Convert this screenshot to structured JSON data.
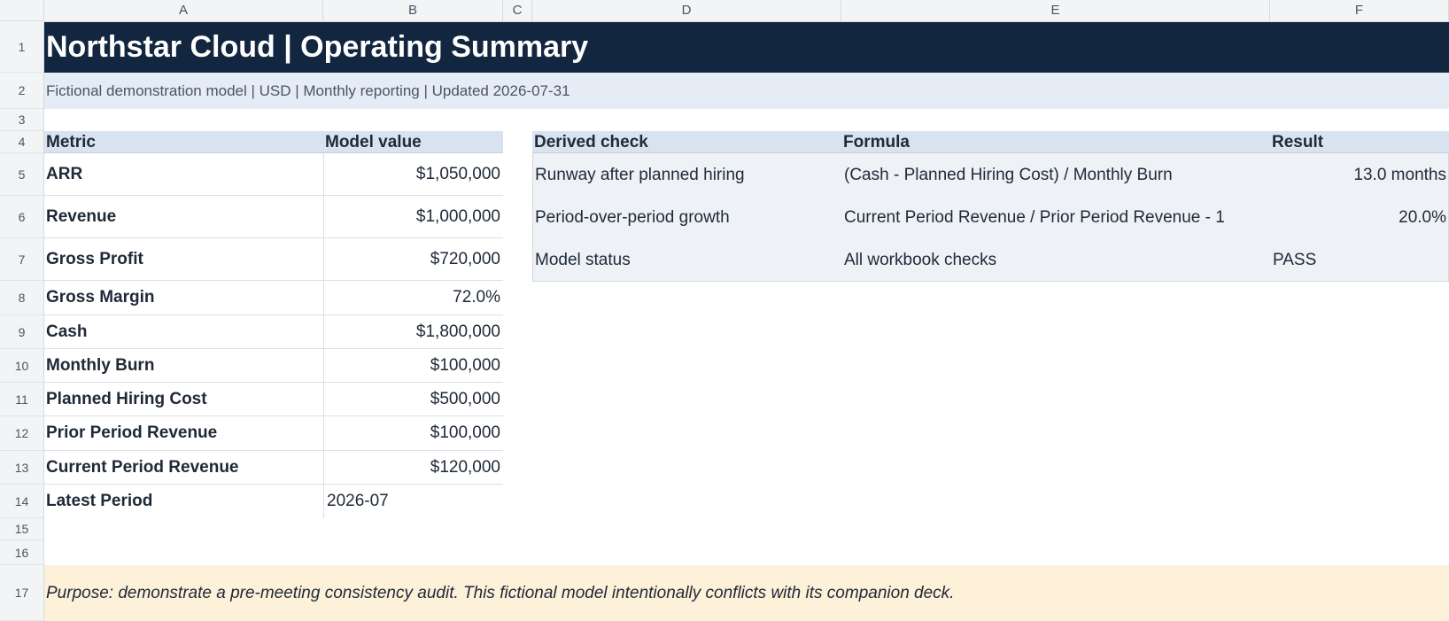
{
  "columns": [
    "A",
    "B",
    "C",
    "D",
    "E",
    "F"
  ],
  "rows": [
    "1",
    "2",
    "3",
    "4",
    "5",
    "6",
    "7",
    "8",
    "9",
    "10",
    "11",
    "12",
    "13",
    "14",
    "15",
    "16",
    "17"
  ],
  "title": "Northstar Cloud | Operating Summary",
  "subtitle": "Fictional demonstration model | USD | Monthly reporting | Updated 2026-07-31",
  "metrics_table": {
    "header_metric": "Metric",
    "header_value": "Model value",
    "rows": [
      {
        "metric": "ARR",
        "value": "$1,050,000"
      },
      {
        "metric": "Revenue",
        "value": "$1,000,000"
      },
      {
        "metric": "Gross Profit",
        "value": "$720,000"
      },
      {
        "metric": "Gross Margin",
        "value": "72.0%"
      },
      {
        "metric": "Cash",
        "value": "$1,800,000"
      },
      {
        "metric": "Monthly Burn",
        "value": "$100,000"
      },
      {
        "metric": "Planned Hiring Cost",
        "value": "$500,000"
      },
      {
        "metric": "Prior Period Revenue",
        "value": "$100,000"
      },
      {
        "metric": "Current Period Revenue",
        "value": "$120,000"
      },
      {
        "metric": "Latest Period",
        "value": "2026-07"
      }
    ]
  },
  "checks_table": {
    "header_check": "Derived check",
    "header_formula": "Formula",
    "header_result": "Result",
    "rows": [
      {
        "check": "Runway after planned hiring",
        "formula": "(Cash - Planned Hiring Cost) / Monthly Burn",
        "result": "13.0 months"
      },
      {
        "check": "Period-over-period growth",
        "formula": "Current Period Revenue / Prior Period Revenue - 1",
        "result": "20.0%"
      },
      {
        "check": "Model status",
        "formula": "All workbook checks",
        "result": "PASS"
      }
    ]
  },
  "purpose": "Purpose: demonstrate a pre-meeting consistency audit. This fictional model intentionally conflicts with its companion deck."
}
